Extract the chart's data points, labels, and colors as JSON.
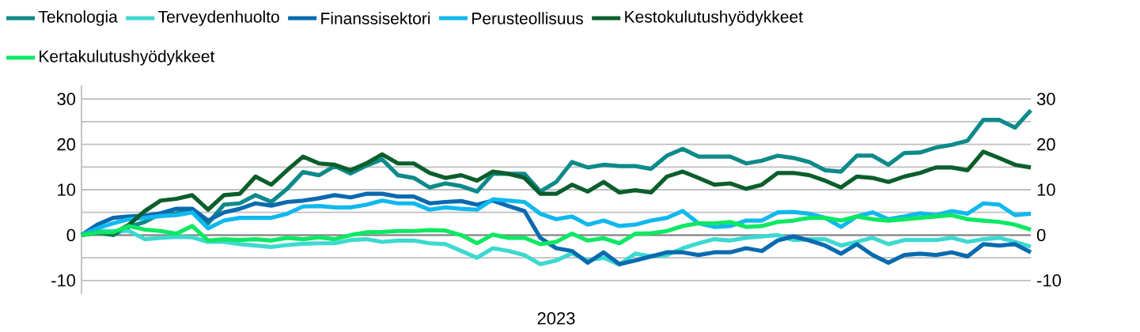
{
  "chart_data": {
    "type": "line",
    "xlabel": "2023",
    "categories": [
      null,
      null,
      null,
      null,
      null,
      null,
      null,
      null,
      null,
      null,
      null,
      null,
      null,
      null,
      null,
      null,
      null,
      null,
      null,
      null,
      null,
      null,
      null,
      null,
      null,
      null,
      null,
      null,
      null,
      null,
      null,
      null,
      null,
      null,
      null,
      null,
      null,
      null,
      null,
      null,
      null,
      null,
      null,
      null,
      null,
      null,
      null,
      null,
      null,
      null,
      null,
      null,
      null,
      null,
      null,
      null,
      null,
      null,
      null,
      null,
      null
    ],
    "series": [
      {
        "name": "Teknologia",
        "color": "#0e8a8a",
        "values": [
          0,
          0.6,
          0,
          1.8,
          2.9,
          4.7,
          4.8,
          5.6,
          2.6,
          6.7,
          7.0,
          8.8,
          7.3,
          10.2,
          13.9,
          13.2,
          15.2,
          13.6,
          15.3,
          16.7,
          13.2,
          12.6,
          10.5,
          11.4,
          10.8,
          9.6,
          13.5,
          13.5,
          13.5,
          9.6,
          11.7,
          16.1,
          14.9,
          15.5,
          15.2,
          15.2,
          14.6,
          17.5,
          19.0,
          17.3,
          17.3,
          17.3,
          15.8,
          16.4,
          17.5,
          17.0,
          16.1,
          14.3,
          14.0,
          17.5,
          17.5,
          15.5,
          18.1,
          18.2,
          19.3,
          19.9,
          20.8,
          25.4,
          25.4,
          23.7,
          27.5
        ]
      },
      {
        "name": "Terveydenhuolto",
        "color": "#3dd9d0",
        "values": [
          0,
          0.9,
          0.9,
          0.9,
          -0.9,
          -0.6,
          -0.4,
          -0.5,
          -1.5,
          -1.5,
          -2.0,
          -2.3,
          -2.6,
          -2.2,
          -1.9,
          -1.8,
          -1.8,
          -1.1,
          -0.9,
          -1.5,
          -1.2,
          -1.2,
          -1.8,
          -2.0,
          -3.5,
          -5.0,
          -2.9,
          -3.5,
          -4.4,
          -6.4,
          -5.6,
          -4.0,
          -5.6,
          -5.0,
          -6.5,
          -4.1,
          -4.7,
          -4.4,
          -2.9,
          -1.8,
          -0.9,
          -1.2,
          -0.6,
          -0.3,
          0,
          -1.1,
          -0.9,
          -0.9,
          -2.3,
          -1.5,
          -0.6,
          -2.0,
          -1.1,
          -1.1,
          -1.1,
          -0.6,
          -1.5,
          -0.9,
          -0.6,
          -1.5,
          -2.6
        ]
      },
      {
        "name": "Finanssisektori",
        "color": "#0a6aaf",
        "values": [
          0,
          2.3,
          3.8,
          4.1,
          4.3,
          4.8,
          5.8,
          5.8,
          3.2,
          5.0,
          5.8,
          7.0,
          6.5,
          7.3,
          7.6,
          8.1,
          8.8,
          8.3,
          9.1,
          9.1,
          8.5,
          8.5,
          7.0,
          7.3,
          7.5,
          6.7,
          7.6,
          6.4,
          5.3,
          -0.6,
          -2.9,
          -3.5,
          -6.1,
          -3.8,
          -6.4,
          -5.6,
          -4.7,
          -3.8,
          -3.8,
          -4.4,
          -3.8,
          -3.8,
          -2.9,
          -3.5,
          -1.2,
          -0.3,
          -1.2,
          -2.3,
          -4.1,
          -2.0,
          -4.4,
          -6.1,
          -4.4,
          -4.1,
          -4.4,
          -3.8,
          -4.7,
          -2.0,
          -2.3,
          -2.0,
          -3.8
        ]
      },
      {
        "name": "Perusteollisuus",
        "color": "#10b8ee",
        "values": [
          0,
          1.5,
          2.6,
          3.5,
          3.8,
          4.2,
          4.4,
          5.0,
          1.5,
          3.2,
          3.8,
          3.8,
          3.8,
          4.7,
          6.3,
          6.4,
          6.1,
          6.1,
          6.7,
          7.6,
          7.0,
          7.0,
          5.6,
          6.1,
          5.8,
          5.6,
          7.9,
          7.6,
          7.3,
          4.7,
          3.5,
          4.1,
          2.3,
          3.2,
          2.0,
          2.3,
          3.2,
          3.8,
          5.3,
          2.6,
          1.8,
          2.0,
          3.2,
          3.2,
          5.0,
          5.1,
          4.7,
          3.8,
          1.8,
          4.1,
          5.0,
          3.5,
          4.1,
          4.8,
          4.4,
          5.3,
          4.7,
          7.0,
          6.7,
          4.4,
          4.7
        ]
      },
      {
        "name": "Kestokulutushyödykkeet",
        "color": "#0b5e2b",
        "values": [
          0,
          0.6,
          0.3,
          2.3,
          5.3,
          7.6,
          8.0,
          8.8,
          5.6,
          8.8,
          9.1,
          12.9,
          11.1,
          14.3,
          17.3,
          15.8,
          15.5,
          14.3,
          15.8,
          17.8,
          15.8,
          15.8,
          13.7,
          12.6,
          13.2,
          12.0,
          14.0,
          13.5,
          12.6,
          9.1,
          9.1,
          11.1,
          9.6,
          11.7,
          9.4,
          9.9,
          9.4,
          12.9,
          14.0,
          12.6,
          11.1,
          11.4,
          10.2,
          11.1,
          13.7,
          13.7,
          13.2,
          12.0,
          10.5,
          12.9,
          12.6,
          11.7,
          12.9,
          13.7,
          14.9,
          14.9,
          14.3,
          18.4,
          17.0,
          15.5,
          14.9
        ]
      },
      {
        "name": "Kertakulutushyödykkeet",
        "color": "#0de863",
        "values": [
          0,
          0.6,
          0.6,
          2.0,
          1.2,
          0.9,
          0.3,
          2.0,
          -1.2,
          -0.9,
          -1.1,
          -0.9,
          -1.2,
          -0.6,
          -0.9,
          -0.5,
          -0.9,
          0,
          0.6,
          0.7,
          0.9,
          0.9,
          1.1,
          1.0,
          0,
          -1.8,
          0.1,
          -0.6,
          -0.6,
          -2.0,
          -1.5,
          0.3,
          -1.2,
          -0.7,
          -1.8,
          0.3,
          0.4,
          0.9,
          2.0,
          2.6,
          2.6,
          2.9,
          1.8,
          2.0,
          2.9,
          3.2,
          3.8,
          3.8,
          3.2,
          4.1,
          3.5,
          3.2,
          3.5,
          3.8,
          4.1,
          4.4,
          3.5,
          3.2,
          2.9,
          2.3,
          1.2
        ]
      }
    ],
    "ylim": [
      -13,
      33
    ],
    "yticks": [
      -10,
      {
        "value": -5,
        "label": null
      },
      0,
      {
        "value": 5,
        "label": null
      },
      10,
      {
        "value": 15,
        "label": null
      },
      20,
      {
        "value": 25,
        "label": null
      },
      30
    ],
    "y2lim": [
      -13,
      33
    ],
    "y2ticks": [
      -10,
      0,
      10,
      20,
      30
    ],
    "grid": "y",
    "legend": "top"
  }
}
